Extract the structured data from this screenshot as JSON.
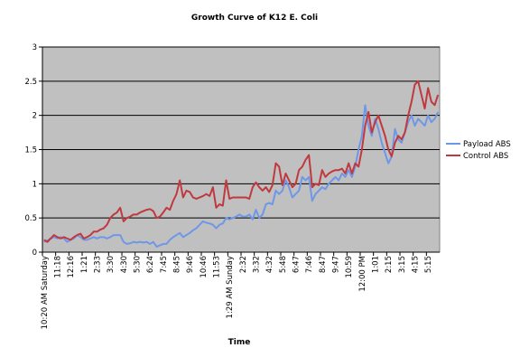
{
  "chart_data": {
    "type": "line",
    "title": "Growth Curve of K12 E. Coli",
    "x_label": "Time",
    "categories": [
      "10:20 AM Saturday",
      null,
      null,
      null,
      "11:18",
      null,
      null,
      null,
      "12:16",
      null,
      null,
      null,
      "1:21",
      null,
      null,
      null,
      "2:33",
      null,
      null,
      null,
      "3:30",
      null,
      null,
      null,
      "4:30",
      null,
      null,
      null,
      "5:30",
      null,
      null,
      null,
      "6:24",
      null,
      null,
      null,
      "7:45",
      null,
      null,
      null,
      "8:45",
      null,
      null,
      null,
      "9:46",
      null,
      null,
      null,
      "10:46",
      null,
      null,
      null,
      "11:53",
      null,
      null,
      null,
      "1:29 AM Sunday",
      null,
      null,
      null,
      "2:32",
      null,
      null,
      null,
      "3:32",
      null,
      null,
      null,
      "4:32",
      null,
      null,
      null,
      "5:48",
      null,
      null,
      null,
      "6:47",
      null,
      null,
      null,
      "7:46",
      null,
      null,
      null,
      "8:47",
      null,
      null,
      null,
      "9:47",
      null,
      null,
      null,
      "10:59",
      null,
      null,
      null,
      "12:00 PM",
      null,
      null,
      null,
      "1:01",
      null,
      null,
      null,
      "2:15",
      null,
      null,
      null,
      "3:15",
      null,
      null,
      null,
      "4:15",
      null,
      null,
      null,
      "5:15",
      null,
      null,
      null
    ],
    "series": [
      {
        "name": "Payload ABS",
        "color": "#6f97e8",
        "values": [
          0.15,
          0.17,
          0.2,
          0.22,
          0.2,
          0.22,
          0.2,
          0.15,
          0.18,
          0.2,
          0.25,
          0.22,
          0.18,
          0.18,
          0.2,
          0.22,
          0.2,
          0.22,
          0.22,
          0.2,
          0.22,
          0.25,
          0.25,
          0.25,
          0.15,
          0.12,
          0.13,
          0.15,
          0.14,
          0.15,
          0.14,
          0.15,
          0.12,
          0.15,
          0.08,
          0.1,
          0.12,
          0.12,
          0.18,
          0.22,
          0.25,
          0.28,
          0.22,
          0.25,
          0.28,
          0.32,
          0.35,
          0.4,
          0.45,
          0.43,
          0.42,
          0.4,
          0.35,
          0.4,
          0.42,
          0.5,
          0.48,
          0.5,
          0.52,
          0.55,
          0.52,
          0.52,
          0.55,
          0.48,
          0.62,
          0.5,
          0.55,
          0.7,
          0.72,
          0.7,
          0.9,
          0.85,
          0.9,
          1.05,
          0.95,
          0.8,
          0.85,
          0.9,
          1.1,
          1.05,
          1.1,
          0.75,
          0.85,
          0.9,
          0.95,
          0.92,
          1.0,
          1.05,
          1.1,
          1.05,
          1.15,
          1.1,
          1.2,
          1.1,
          1.25,
          1.5,
          1.7,
          2.15,
          1.85,
          1.7,
          1.95,
          1.8,
          1.6,
          1.45,
          1.3,
          1.4,
          1.8,
          1.65,
          1.6,
          1.75,
          1.9,
          2.0,
          1.85,
          1.95,
          1.9,
          1.85,
          2.0,
          1.9,
          1.95,
          2.05
        ]
      },
      {
        "name": "Control ABS",
        "color": "#c0393f",
        "values": [
          0.18,
          0.15,
          0.2,
          0.25,
          0.22,
          0.2,
          0.22,
          0.2,
          0.18,
          0.22,
          0.25,
          0.27,
          0.2,
          0.22,
          0.25,
          0.3,
          0.3,
          0.33,
          0.35,
          0.4,
          0.5,
          0.55,
          0.58,
          0.65,
          0.45,
          0.5,
          0.52,
          0.55,
          0.55,
          0.58,
          0.6,
          0.62,
          0.63,
          0.6,
          0.5,
          0.52,
          0.58,
          0.65,
          0.62,
          0.75,
          0.85,
          1.05,
          0.8,
          0.9,
          0.88,
          0.8,
          0.78,
          0.8,
          0.82,
          0.85,
          0.82,
          0.95,
          0.65,
          0.7,
          0.68,
          1.05,
          0.78,
          0.8,
          0.8,
          0.8,
          0.8,
          0.8,
          0.78,
          0.95,
          1.02,
          0.95,
          0.9,
          0.95,
          0.88,
          0.98,
          1.3,
          1.25,
          0.98,
          1.15,
          1.05,
          0.95,
          1.0,
          1.2,
          1.25,
          1.35,
          1.42,
          0.95,
          1.0,
          0.98,
          1.2,
          1.1,
          1.15,
          1.18,
          1.2,
          1.2,
          1.22,
          1.15,
          1.3,
          1.15,
          1.3,
          1.25,
          1.5,
          1.85,
          2.05,
          1.75,
          1.9,
          2.0,
          1.85,
          1.7,
          1.5,
          1.4,
          1.6,
          1.7,
          1.65,
          1.75,
          2.0,
          2.2,
          2.45,
          2.5,
          2.3,
          2.1,
          2.4,
          2.2,
          2.15,
          2.3
        ]
      }
    ],
    "ylim": [
      0,
      3
    ],
    "yticks": [
      0,
      0.5,
      1,
      1.5,
      2,
      2.5,
      3
    ],
    "grid": true,
    "plot_background": "#c0c0c0",
    "legend": "right"
  }
}
